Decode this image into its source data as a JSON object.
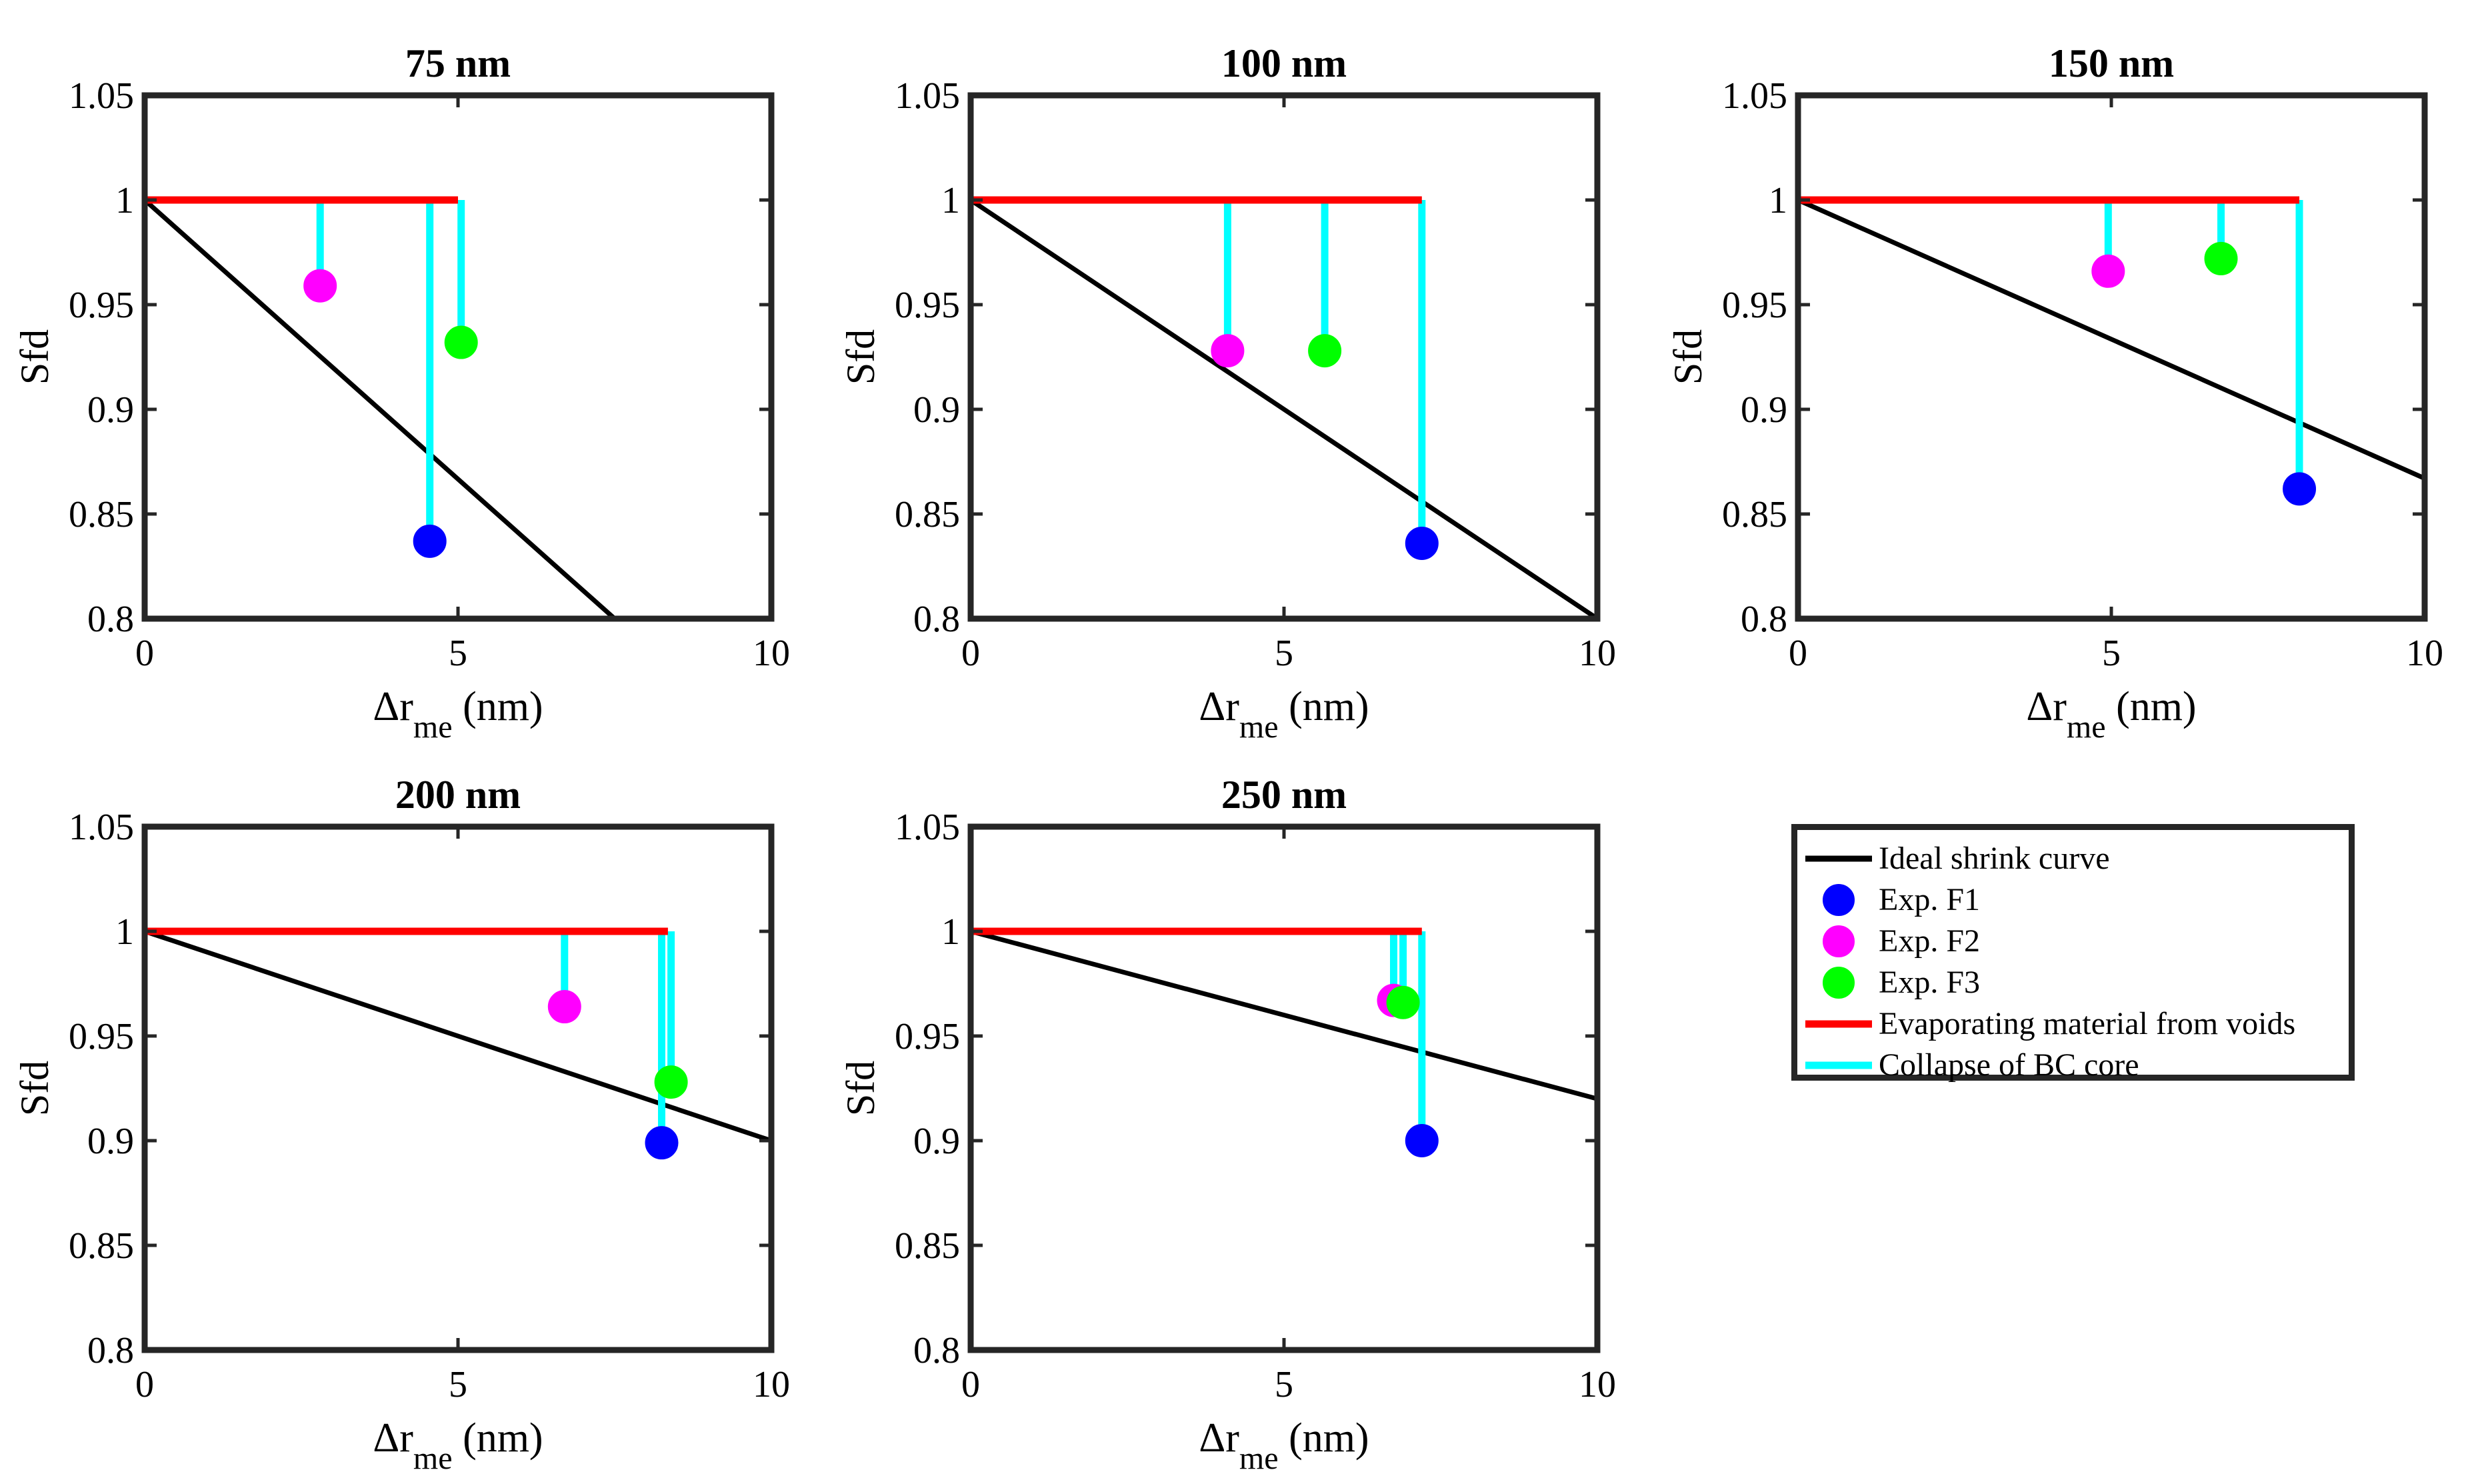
{
  "legend": {
    "ideal": "Ideal shrink curve",
    "f1": "Exp. F1",
    "f2": "Exp. F2",
    "f3": "Exp. F3",
    "evap": "Evaporating material from voids",
    "collapse": "Collapse of BC core"
  },
  "colors": {
    "ideal": "#000000",
    "f1": "#0000ff",
    "f2": "#ff00ff",
    "f3": "#00ff00",
    "evap": "#ff0000",
    "collapse": "#00ffff",
    "axes": "#262626"
  },
  "chart_data": [
    {
      "type": "scatter",
      "title": "75 nm",
      "xlabel": "Δr",
      "xlabel_sub": "me",
      "xlabel_unit": "(nm)",
      "ylabel": "Sfd",
      "xlim": [
        0,
        10
      ],
      "ylim": [
        0.8,
        1.05
      ],
      "xticks": [
        "0",
        "5",
        "10"
      ],
      "yticks": [
        "0.8",
        "0.85",
        "0.9",
        "0.95",
        "1",
        "1.05"
      ],
      "ideal_line": [
        [
          0,
          1
        ],
        [
          7.5,
          0.8
        ]
      ],
      "evaporating_line": [
        [
          0,
          1
        ],
        [
          5.0,
          1
        ]
      ],
      "points": [
        {
          "series": "Exp. F1",
          "x": 4.55,
          "y": 0.837
        },
        {
          "series": "Exp. F2",
          "x": 2.8,
          "y": 0.959
        },
        {
          "series": "Exp. F3",
          "x": 5.05,
          "y": 0.932
        }
      ]
    },
    {
      "type": "scatter",
      "title": "100 nm",
      "xlabel": "Δr",
      "xlabel_sub": "me",
      "xlabel_unit": "(nm)",
      "ylabel": "Sfd",
      "xlim": [
        0,
        10
      ],
      "ylim": [
        0.8,
        1.05
      ],
      "xticks": [
        "0",
        "5",
        "10"
      ],
      "yticks": [
        "0.8",
        "0.85",
        "0.9",
        "0.95",
        "1",
        "1.05"
      ],
      "ideal_line": [
        [
          0,
          1
        ],
        [
          10,
          0.8
        ]
      ],
      "evaporating_line": [
        [
          0,
          1
        ],
        [
          7.2,
          1
        ]
      ],
      "points": [
        {
          "series": "Exp. F1",
          "x": 7.2,
          "y": 0.836
        },
        {
          "series": "Exp. F2",
          "x": 4.1,
          "y": 0.928
        },
        {
          "series": "Exp. F3",
          "x": 5.65,
          "y": 0.928
        }
      ]
    },
    {
      "type": "scatter",
      "title": "150 nm",
      "xlabel": "Δr",
      "xlabel_sub": "me",
      "xlabel_unit": "(nm)",
      "ylabel": "Sfd",
      "xlim": [
        0,
        10
      ],
      "ylim": [
        0.8,
        1.05
      ],
      "xticks": [
        "0",
        "5",
        "10"
      ],
      "yticks": [
        "0.8",
        "0.85",
        "0.9",
        "0.95",
        "1",
        "1.05"
      ],
      "ideal_line": [
        [
          0,
          1
        ],
        [
          10,
          0.867
        ]
      ],
      "evaporating_line": [
        [
          0,
          1
        ],
        [
          8.0,
          1
        ]
      ],
      "points": [
        {
          "series": "Exp. F1",
          "x": 8.0,
          "y": 0.862
        },
        {
          "series": "Exp. F2",
          "x": 4.95,
          "y": 0.966
        },
        {
          "series": "Exp. F3",
          "x": 6.75,
          "y": 0.972
        }
      ]
    },
    {
      "type": "scatter",
      "title": "200 nm",
      "xlabel": "Δr",
      "xlabel_sub": "me",
      "xlabel_unit": "(nm)",
      "ylabel": "Sfd",
      "xlim": [
        0,
        10
      ],
      "ylim": [
        0.8,
        1.05
      ],
      "xticks": [
        "0",
        "5",
        "10"
      ],
      "yticks": [
        "0.8",
        "0.85",
        "0.9",
        "0.95",
        "1",
        "1.05"
      ],
      "ideal_line": [
        [
          0,
          1
        ],
        [
          10,
          0.9
        ]
      ],
      "evaporating_line": [
        [
          0,
          1
        ],
        [
          8.35,
          1
        ]
      ],
      "points": [
        {
          "series": "Exp. F1",
          "x": 8.25,
          "y": 0.899
        },
        {
          "series": "Exp. F2",
          "x": 6.7,
          "y": 0.964
        },
        {
          "series": "Exp. F3",
          "x": 8.4,
          "y": 0.928
        }
      ]
    },
    {
      "type": "scatter",
      "title": "250 nm",
      "xlabel": "Δr",
      "xlabel_sub": "me",
      "xlabel_unit": "(nm)",
      "ylabel": "Sfd",
      "xlim": [
        0,
        10
      ],
      "ylim": [
        0.8,
        1.05
      ],
      "xticks": [
        "0",
        "5",
        "10"
      ],
      "yticks": [
        "0.8",
        "0.85",
        "0.9",
        "0.95",
        "1",
        "1.05"
      ],
      "ideal_line": [
        [
          0,
          1
        ],
        [
          10,
          0.92
        ]
      ],
      "evaporating_line": [
        [
          0,
          1
        ],
        [
          7.2,
          1
        ]
      ],
      "points": [
        {
          "series": "Exp. F1",
          "x": 7.2,
          "y": 0.9
        },
        {
          "series": "Exp. F2",
          "x": 6.75,
          "y": 0.967
        },
        {
          "series": "Exp. F3",
          "x": 6.9,
          "y": 0.966
        }
      ]
    }
  ]
}
